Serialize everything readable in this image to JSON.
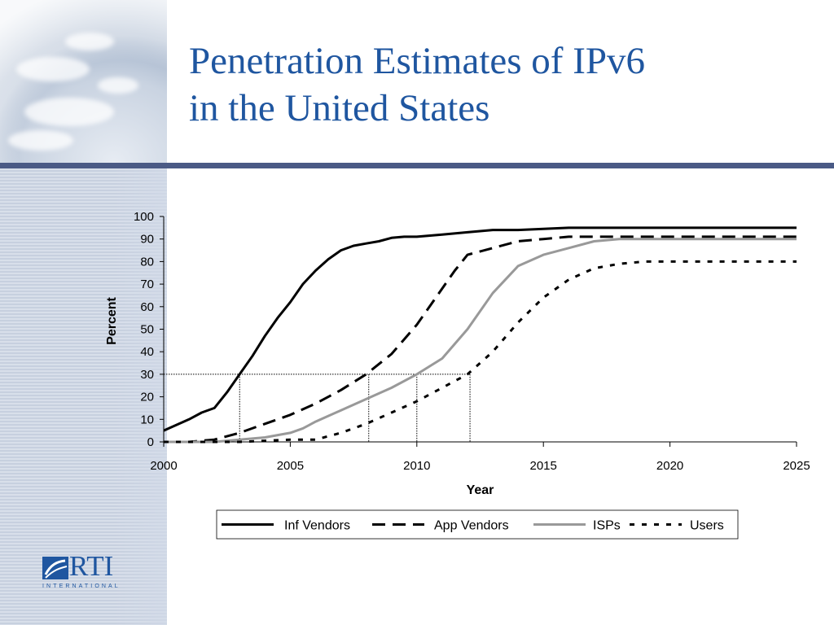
{
  "slide": {
    "title_line1": "Penetration Estimates of IPv6",
    "title_line2": "in the United States"
  },
  "logo": {
    "name": "RTI",
    "subtitle": "INTERNATIONAL"
  },
  "colors": {
    "title": "#1f56a0",
    "rule": "#4a5a85",
    "isp_series": "#999999"
  },
  "chart_data": {
    "type": "line",
    "xlabel": "Year",
    "ylabel": "Percent",
    "xlim": [
      2000,
      2025
    ],
    "ylim": [
      0,
      100
    ],
    "xticks": [
      2000,
      2005,
      2010,
      2015,
      2020,
      2025
    ],
    "yticks": [
      0,
      10,
      20,
      30,
      40,
      50,
      60,
      70,
      80,
      90,
      100
    ],
    "legend_position": "bottom",
    "series": [
      {
        "name": "Inf Vendors",
        "style": "solid",
        "color": "#000000",
        "x": [
          2000,
          2001,
          2001.5,
          2002,
          2002.5,
          2003,
          2003.5,
          2004,
          2004.5,
          2005,
          2005.5,
          2006,
          2006.5,
          2007,
          2007.5,
          2008,
          2008.5,
          2009,
          2009.5,
          2010,
          2011,
          2012,
          2013,
          2014,
          2015,
          2016,
          2018,
          2020,
          2022,
          2025
        ],
        "y": [
          5,
          10,
          13,
          15,
          22,
          30,
          38,
          47,
          55,
          62,
          70,
          76,
          81,
          85,
          87,
          88,
          89,
          90.5,
          91,
          91,
          92,
          93,
          94,
          94,
          94.5,
          95,
          95,
          95,
          95,
          95
        ]
      },
      {
        "name": "App Vendors",
        "style": "dash",
        "color": "#000000",
        "x": [
          2000,
          2001,
          2002,
          2003,
          2004,
          2005,
          2006,
          2007,
          2008,
          2009,
          2010,
          2011,
          2011.5,
          2012,
          2013,
          2014,
          2015,
          2016,
          2018,
          2020,
          2025
        ],
        "y": [
          0,
          0,
          1,
          4,
          8,
          12,
          17,
          23,
          30,
          39,
          52,
          68,
          76,
          83,
          86,
          89,
          90,
          91,
          91,
          91,
          91
        ]
      },
      {
        "name": "ISPs",
        "style": "solid",
        "color": "#999999",
        "x": [
          2000,
          2002,
          2003,
          2004,
          2005,
          2005.5,
          2006,
          2007,
          2008,
          2009,
          2010,
          2011,
          2012,
          2013,
          2014,
          2015,
          2016,
          2017,
          2018,
          2019,
          2020,
          2025
        ],
        "y": [
          0,
          0,
          1,
          2,
          4,
          6,
          9,
          14,
          19,
          24,
          30,
          37,
          50,
          66,
          78,
          83,
          86,
          89,
          90,
          90,
          90,
          90
        ]
      },
      {
        "name": "Users",
        "style": "dot",
        "color": "#000000",
        "x": [
          2000,
          2003,
          2004,
          2005,
          2006,
          2007,
          2008,
          2009,
          2010,
          2011,
          2012,
          2013,
          2014,
          2015,
          2016,
          2017,
          2018,
          2019,
          2020,
          2025
        ],
        "y": [
          0,
          0,
          0.5,
          1,
          1,
          4,
          8,
          13,
          18,
          24,
          30,
          40,
          53,
          64,
          72,
          77,
          79,
          80,
          80,
          80
        ]
      }
    ],
    "reference_lines": {
      "y": 30,
      "x": [
        2003,
        2008.1,
        2010,
        2012.1
      ]
    }
  }
}
